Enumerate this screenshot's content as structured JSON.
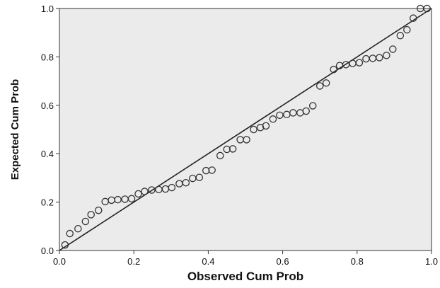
{
  "chart_data": {
    "type": "scatter",
    "title": "",
    "xlabel": "Observed Cum Prob",
    "ylabel": "Expected Cum Prob",
    "xlim": [
      0.0,
      1.0
    ],
    "ylim": [
      0.0,
      1.0
    ],
    "x_ticks": [
      "0.0",
      "0.2",
      "0.4",
      "0.6",
      "0.8",
      "1.0"
    ],
    "y_ticks": [
      "0.0",
      "0.2",
      "0.4",
      "0.6",
      "0.8",
      "1.0"
    ],
    "grid": false,
    "plot_background": "#ebebeb",
    "point_color": "#333333",
    "line_color": "#222222",
    "reference_line": {
      "from": [
        0,
        0
      ],
      "to": [
        1,
        1
      ]
    },
    "points": [
      [
        0.015,
        0.023
      ],
      [
        0.028,
        0.07
      ],
      [
        0.05,
        0.09
      ],
      [
        0.07,
        0.12
      ],
      [
        0.085,
        0.148
      ],
      [
        0.105,
        0.166
      ],
      [
        0.123,
        0.202
      ],
      [
        0.14,
        0.208
      ],
      [
        0.157,
        0.21
      ],
      [
        0.176,
        0.212
      ],
      [
        0.194,
        0.214
      ],
      [
        0.212,
        0.234
      ],
      [
        0.229,
        0.244
      ],
      [
        0.248,
        0.25
      ],
      [
        0.267,
        0.252
      ],
      [
        0.285,
        0.254
      ],
      [
        0.302,
        0.26
      ],
      [
        0.322,
        0.276
      ],
      [
        0.34,
        0.28
      ],
      [
        0.358,
        0.298
      ],
      [
        0.376,
        0.302
      ],
      [
        0.394,
        0.33
      ],
      [
        0.41,
        0.332
      ],
      [
        0.432,
        0.392
      ],
      [
        0.45,
        0.418
      ],
      [
        0.466,
        0.42
      ],
      [
        0.486,
        0.458
      ],
      [
        0.503,
        0.458
      ],
      [
        0.522,
        0.5
      ],
      [
        0.54,
        0.508
      ],
      [
        0.555,
        0.515
      ],
      [
        0.574,
        0.543
      ],
      [
        0.592,
        0.559
      ],
      [
        0.611,
        0.562
      ],
      [
        0.628,
        0.569
      ],
      [
        0.647,
        0.569
      ],
      [
        0.663,
        0.576
      ],
      [
        0.681,
        0.598
      ],
      [
        0.7,
        0.68
      ],
      [
        0.717,
        0.692
      ],
      [
        0.737,
        0.748
      ],
      [
        0.753,
        0.764
      ],
      [
        0.77,
        0.768
      ],
      [
        0.788,
        0.773
      ],
      [
        0.806,
        0.776
      ],
      [
        0.824,
        0.792
      ],
      [
        0.842,
        0.794
      ],
      [
        0.86,
        0.797
      ],
      [
        0.879,
        0.806
      ],
      [
        0.896,
        0.832
      ],
      [
        0.916,
        0.888
      ],
      [
        0.934,
        0.912
      ],
      [
        0.951,
        0.96
      ],
      [
        0.97,
        1.0
      ],
      [
        0.988,
        1.0
      ]
    ]
  }
}
